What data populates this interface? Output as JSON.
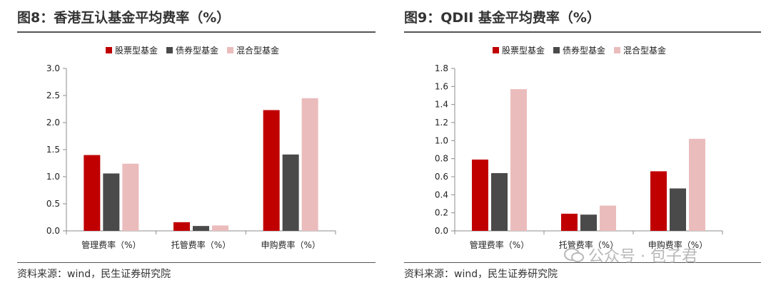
{
  "colors": {
    "stock": "#c00000",
    "bond": "#4a4a4a",
    "mixed": "#ebbcbc",
    "axis": "#8c8c8c"
  },
  "chart_data": [
    {
      "type": "bar",
      "title": "图8：香港互认基金平均费率（%）",
      "source": "资料来源：wind，民生证券研究院",
      "categories": [
        "管理费率（%）",
        "托管费率（%）",
        "申购费率（%）"
      ],
      "series": [
        {
          "name": "股票型基金",
          "values": [
            1.4,
            0.16,
            2.23
          ]
        },
        {
          "name": "债券型基金",
          "values": [
            1.06,
            0.09,
            1.41
          ]
        },
        {
          "name": "混合型基金",
          "values": [
            1.24,
            0.1,
            2.45
          ]
        }
      ],
      "ylim": [
        0,
        3.0
      ],
      "yticks": [
        "0.0",
        "0.5",
        "1.0",
        "1.5",
        "2.0",
        "2.5",
        "3.0"
      ],
      "legend": "top-center",
      "grid": false
    },
    {
      "type": "bar",
      "title": "图9：QDII 基金平均费率（%）",
      "source": "资料来源：wind，民生证券研究院",
      "categories": [
        "管理费率（%）",
        "托管费率（%）",
        "申购费率（%）"
      ],
      "series": [
        {
          "name": "股票型基金",
          "values": [
            0.79,
            0.19,
            0.66
          ]
        },
        {
          "name": "债券型基金",
          "values": [
            0.64,
            0.18,
            0.47
          ]
        },
        {
          "name": "混合型基金",
          "values": [
            1.57,
            0.28,
            1.02
          ]
        }
      ],
      "ylim": [
        0,
        1.8
      ],
      "yticks": [
        "0.0",
        "0.2",
        "0.4",
        "0.6",
        "0.8",
        "1.0",
        "1.2",
        "1.4",
        "1.6",
        "1.8"
      ],
      "legend": "top-center",
      "grid": false
    }
  ],
  "watermark": {
    "text": "公众号 · 包子君",
    "icon": "wechat-icon"
  }
}
